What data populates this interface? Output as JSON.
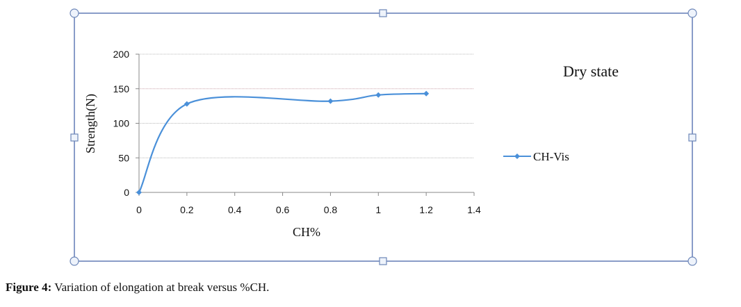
{
  "chart_data": {
    "type": "line",
    "title": "Dry state",
    "xlabel": "CH%",
    "ylabel": "Strength(N)",
    "xlim": [
      0,
      1.4
    ],
    "ylim": [
      0,
      200
    ],
    "x_ticks": [
      "0",
      "0.2",
      "0.4",
      "0.6",
      "0.8",
      "1",
      "1.2",
      "1.4"
    ],
    "y_ticks": [
      "0",
      "50",
      "100",
      "150",
      "200"
    ],
    "grid": true,
    "smoothed": true,
    "legend_position": "right",
    "series": [
      {
        "name": "CH-Vis",
        "x": [
          0,
          0.2,
          0.8,
          1,
          1.2
        ],
        "y": [
          0,
          128,
          132,
          141,
          143
        ],
        "color": "#4a90d9"
      }
    ]
  },
  "caption": {
    "label": "Figure 4:",
    "text": " Variation of elongation at break versus %CH."
  }
}
